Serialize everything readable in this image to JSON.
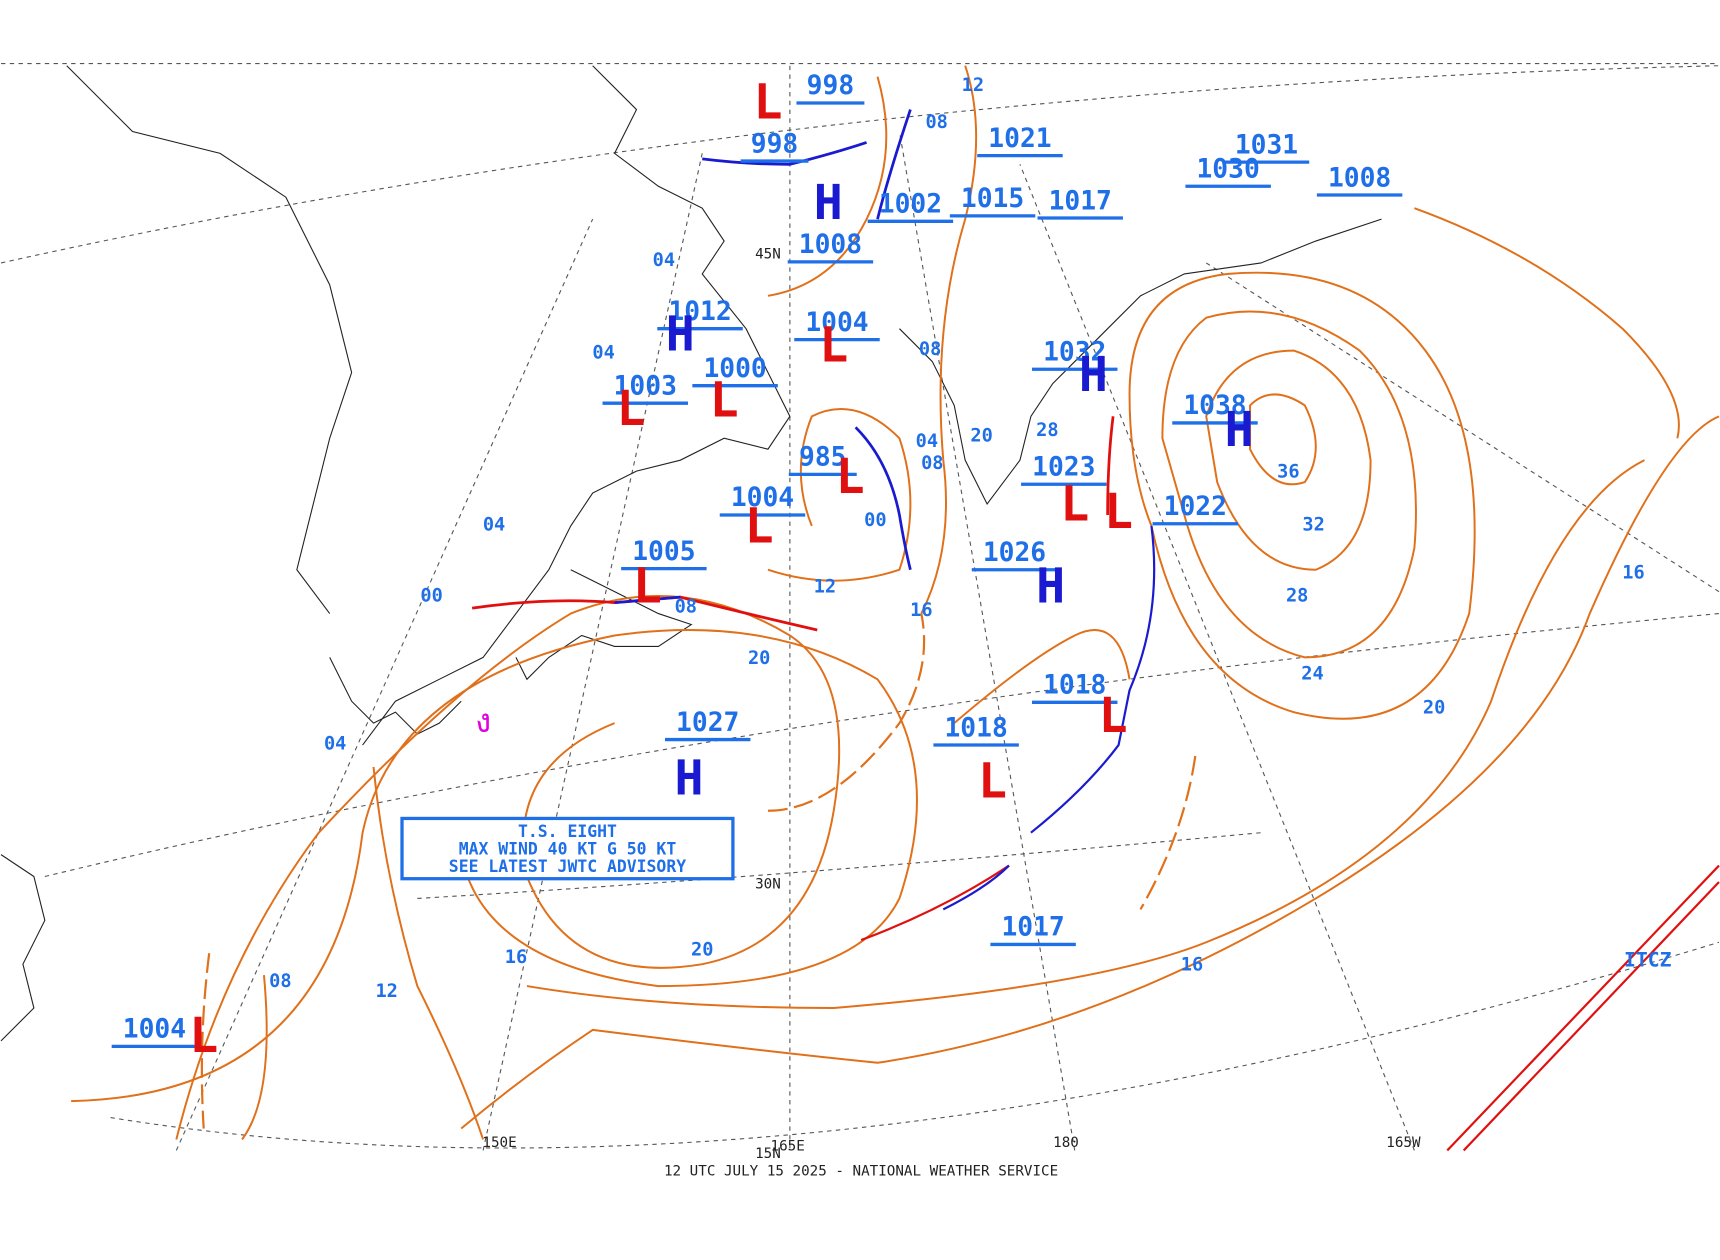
{
  "footer": "12 UTC JULY 15 2025 - NATIONAL WEATHER SERVICE",
  "advisory": [
    "T.S. EIGHT",
    "MAX WIND 40 KT G 50 KT",
    "SEE LATEST JWTC ADVISORY"
  ],
  "centers": [
    {
      "symbol": "L",
      "pressure": "998"
    },
    {
      "pressure": "998"
    },
    {
      "symbol": "H",
      "pressure": "1008"
    },
    {
      "pressure": "1002"
    },
    {
      "pressure": "1015"
    },
    {
      "pressure": "1017"
    },
    {
      "pressure": "1021"
    },
    {
      "symbol": "H",
      "pressure": "1012"
    },
    {
      "symbol": "L",
      "pressure": "1004"
    },
    {
      "symbol": "L",
      "pressure": "1000"
    },
    {
      "symbol": "L",
      "pressure": "1003"
    },
    {
      "symbol": "L",
      "pressure": "985"
    },
    {
      "symbol": "L",
      "pressure": "1004"
    },
    {
      "symbol": "L",
      "pressure": "1005"
    },
    {
      "symbol": "H",
      "pressure": "1027"
    },
    {
      "symbol": "H",
      "pressure": "1032"
    },
    {
      "symbol": "H",
      "pressure": "1038"
    },
    {
      "symbol": "L",
      "pressure": "1023"
    },
    {
      "symbol": "H",
      "pressure": "1026"
    },
    {
      "symbol": "L",
      "pressure": "1022"
    },
    {
      "symbol": "L",
      "pressure": "1018"
    },
    {
      "symbol": "L",
      "pressure": "1018"
    },
    {
      "pressure": "1017"
    },
    {
      "symbol": "L",
      "pressure": "1004"
    },
    {
      "pressure": "1008"
    },
    {
      "pressure": "1031"
    },
    {
      "pressure": "1030"
    }
  ],
  "isobar_labels": [
    "20",
    "16",
    "12",
    "08",
    "00",
    "04",
    "04",
    "20",
    "16",
    "12",
    "08",
    "16",
    "20",
    "24",
    "28",
    "32",
    "36",
    "16",
    "08",
    "04",
    "00",
    "04",
    "04",
    "28",
    "20",
    "08",
    "08",
    "12"
  ],
  "grid_labels": [
    "45N",
    "30N",
    "150E",
    "165E",
    "180",
    "165W",
    "15N"
  ],
  "features": [
    "ITCZ"
  ]
}
